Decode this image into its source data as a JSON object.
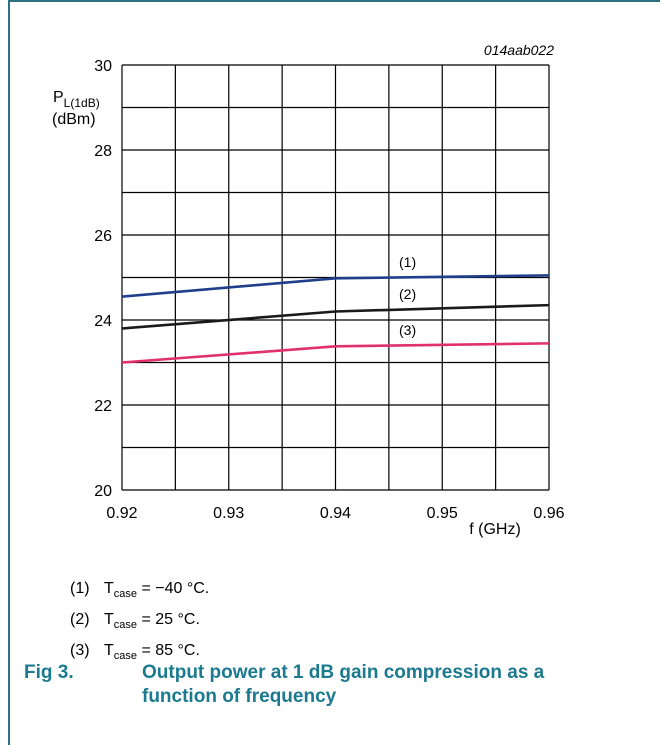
{
  "chart_data": {
    "type": "line",
    "id_label": "014aab022",
    "ylabel_main": "P",
    "ylabel_sub": "L(1dB)",
    "yunit": "(dBm)",
    "xlabel": "f (GHz)",
    "xlim": [
      0.92,
      0.96
    ],
    "ylim": [
      20,
      30
    ],
    "xticks": [
      "0.92",
      "0.93",
      "0.94",
      "0.95",
      "0.96"
    ],
    "yticks": [
      "20",
      "22",
      "24",
      "26",
      "28",
      "30"
    ],
    "grid": true,
    "series": [
      {
        "name": "(1)",
        "color": "#1f3f8c",
        "x": [
          0.92,
          0.94,
          0.96
        ],
        "y": [
          24.55,
          24.98,
          25.05
        ]
      },
      {
        "name": "(2)",
        "color": "#1a1a1a",
        "x": [
          0.92,
          0.94,
          0.96
        ],
        "y": [
          23.8,
          24.2,
          24.35
        ]
      },
      {
        "name": "(3)",
        "color": "#e0306e",
        "x": [
          0.92,
          0.94,
          0.96
        ],
        "y": [
          23.0,
          23.38,
          23.45
        ]
      }
    ]
  },
  "legend": [
    {
      "num": "(1)",
      "t": "T",
      "sub": "case",
      "rest": " = −40 °C."
    },
    {
      "num": "(2)",
      "t": "T",
      "sub": "case",
      "rest": " = 25 °C."
    },
    {
      "num": "(3)",
      "t": "T",
      "sub": "case",
      "rest": " = 85 °C."
    }
  ],
  "caption": {
    "fig": "Fig 3.",
    "title": "Output power at 1 dB gain compression as a function of frequency"
  }
}
